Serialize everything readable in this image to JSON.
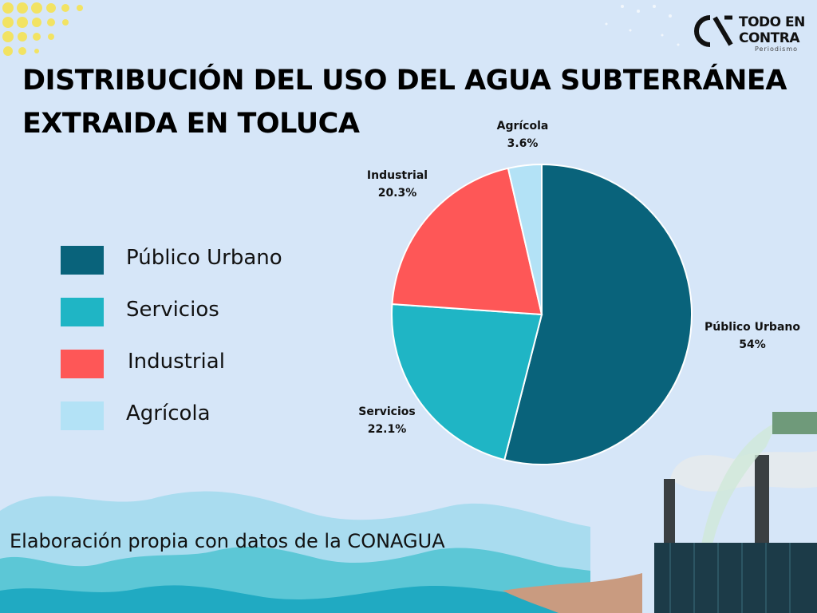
{
  "title_line1": "DISTRIBUCIÓN DEL USO DEL AGUA SUBTERRÁNEA",
  "title_line2": "EXTRAIDA EN TOLUCA",
  "source": "Elaboración propia con datos de la CONAGUA",
  "logo": {
    "line1": "TODO EN",
    "line2": "CONTRA",
    "sub": "Periodismo"
  },
  "colors": {
    "background": "#d6e6f8",
    "publico_urbano": "#09637b",
    "servicios": "#1fb5c5",
    "industrial": "#fe5757",
    "agricola": "#b3e2f6"
  },
  "chart_data": {
    "type": "pie",
    "title": "DISTRIBUCIÓN DEL USO DEL AGUA SUBTERRÁNEA EXTRAIDA EN TOLUCA",
    "categories": [
      "Público Urbano",
      "Servicios",
      "Industrial",
      "Agrícola"
    ],
    "values": [
      54,
      22.1,
      20.3,
      3.6
    ],
    "value_labels": [
      "54%",
      "22.1%",
      "20.3%",
      "3.6%"
    ],
    "colors": [
      "#09637b",
      "#1fb5c5",
      "#fe5757",
      "#b3e2f6"
    ],
    "legend_position": "left",
    "start": "top, clockwise"
  }
}
